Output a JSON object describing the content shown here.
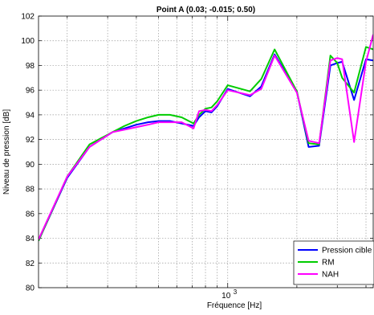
{
  "chart_data": {
    "type": "line",
    "title": "Point A (0.03; -0.015; 0.50)",
    "xlabel": "Fréquence [Hz]",
    "ylabel": "Niveau de pression [dB]",
    "xscale": "log",
    "xlim": [
      150,
      4300
    ],
    "ylim": [
      80,
      102
    ],
    "yticks": [
      80,
      82,
      84,
      86,
      88,
      90,
      92,
      94,
      96,
      98,
      100,
      102
    ],
    "ytick_labels": [
      "80",
      "82",
      "84",
      "86",
      "88",
      "90",
      "92",
      "94",
      "96",
      "98",
      "100",
      "102"
    ],
    "xtick_labels": [
      {
        "base": "10",
        "exp": "3",
        "value": 1000
      }
    ],
    "grid": true,
    "legend_position": "bottom-right",
    "series": [
      {
        "name": "Pression cible",
        "color": "#0000ff",
        "x": [
          150,
          200,
          250,
          315,
          355,
          400,
          450,
          500,
          560,
          630,
          710,
          750,
          800,
          850,
          900,
          1000,
          1250,
          1400,
          1600,
          2000,
          2250,
          2500,
          2800,
          3000,
          3150,
          3550,
          4000,
          4300
        ],
        "y": [
          83.8,
          88.9,
          91.4,
          92.6,
          92.9,
          93.2,
          93.4,
          93.5,
          93.5,
          93.3,
          93.1,
          93.8,
          94.3,
          94.2,
          94.7,
          96.1,
          95.5,
          96.3,
          98.9,
          95.9,
          91.4,
          91.5,
          98.0,
          98.2,
          98.3,
          95.2,
          98.5,
          98.4
        ]
      },
      {
        "name": "RM",
        "color": "#00cc00",
        "x": [
          150,
          200,
          250,
          315,
          355,
          400,
          450,
          500,
          560,
          630,
          710,
          750,
          800,
          850,
          900,
          1000,
          1250,
          1400,
          1600,
          2000,
          2250,
          2500,
          2800,
          3000,
          3150,
          3550,
          4000,
          4300
        ],
        "y": [
          83.8,
          89.0,
          91.6,
          92.6,
          93.1,
          93.5,
          93.8,
          94.0,
          94.0,
          93.8,
          93.3,
          94.0,
          94.5,
          94.6,
          95.1,
          96.4,
          95.9,
          96.9,
          99.3,
          95.9,
          91.7,
          91.6,
          98.8,
          98.2,
          97.0,
          95.8,
          99.5,
          99.3
        ]
      },
      {
        "name": "NAH",
        "color": "#ff00ff",
        "x": [
          150,
          200,
          250,
          315,
          355,
          400,
          450,
          500,
          560,
          630,
          710,
          750,
          800,
          850,
          900,
          1000,
          1250,
          1400,
          1600,
          2000,
          2250,
          2500,
          2800,
          3000,
          3150,
          3550,
          4000,
          4300
        ],
        "y": [
          83.9,
          89.0,
          91.4,
          92.6,
          92.8,
          93.0,
          93.2,
          93.4,
          93.4,
          93.4,
          92.9,
          94.3,
          94.4,
          94.3,
          94.8,
          96.0,
          95.6,
          96.1,
          98.8,
          95.8,
          91.9,
          91.7,
          98.4,
          98.6,
          98.5,
          91.8,
          98.3,
          100.5
        ]
      }
    ]
  }
}
